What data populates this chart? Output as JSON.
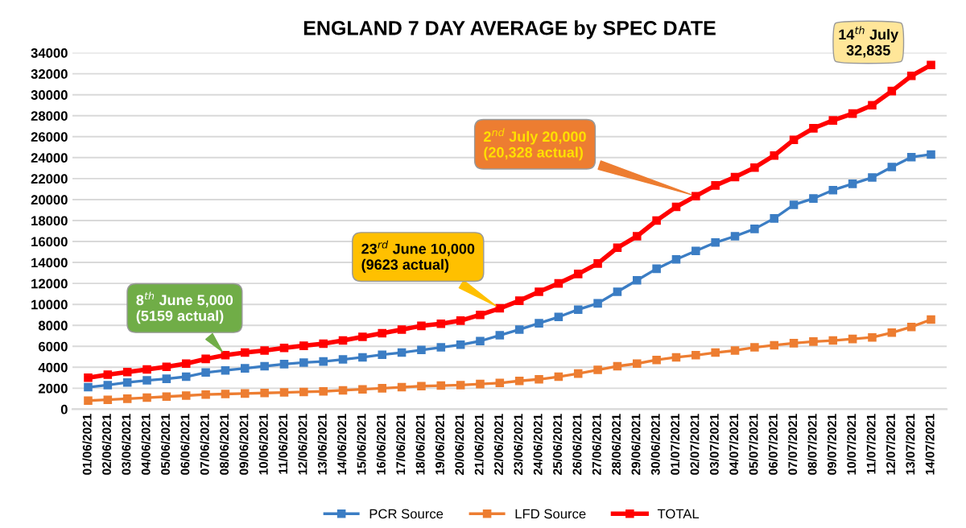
{
  "chart_data": {
    "type": "line",
    "title": "ENGLAND 7 DAY AVERAGE by SPEC DATE",
    "categories": [
      "01/06/2021",
      "02/06/2021",
      "03/06/2021",
      "04/06/2021",
      "05/06/2021",
      "06/06/2021",
      "07/06/2021",
      "08/06/2021",
      "09/06/2021",
      "10/06/2021",
      "11/06/2021",
      "12/06/2021",
      "13/06/2021",
      "14/06/2021",
      "15/06/2021",
      "16/06/2021",
      "17/06/2021",
      "18/06/2021",
      "19/06/2021",
      "20/06/2021",
      "21/06/2021",
      "22/06/2021",
      "23/06/2021",
      "24/06/2021",
      "25/06/2021",
      "26/06/2021",
      "27/06/2021",
      "28/06/2021",
      "29/06/2021",
      "30/06/2021",
      "01/07/2021",
      "02/07/2021",
      "03/07/2021",
      "04/07/2021",
      "05/07/2021",
      "06/07/2021",
      "07/07/2021",
      "08/07/2021",
      "09/07/2021",
      "10/07/2021",
      "11/07/2021",
      "12/07/2021",
      "13/07/2021",
      "14/07/2021"
    ],
    "series": [
      {
        "name": "PCR Source",
        "color": "#3b7dc4",
        "values": [
          2100,
          2300,
          2550,
          2750,
          2900,
          3100,
          3500,
          3700,
          3900,
          4100,
          4300,
          4450,
          4550,
          4750,
          4950,
          5200,
          5400,
          5650,
          5900,
          6150,
          6500,
          7050,
          7600,
          8200,
          8800,
          9500,
          10100,
          11200,
          12300,
          13400,
          14300,
          15100,
          15900,
          16500,
          17200,
          18200,
          19500,
          20100,
          20900,
          21500,
          22100,
          23100,
          24050,
          24300
        ]
      },
      {
        "name": "LFD Source",
        "color": "#ed7d31",
        "values": [
          820,
          900,
          1000,
          1100,
          1200,
          1300,
          1400,
          1450,
          1500,
          1550,
          1600,
          1650,
          1700,
          1800,
          1900,
          2000,
          2100,
          2200,
          2250,
          2300,
          2400,
          2500,
          2700,
          2850,
          3100,
          3400,
          3750,
          4100,
          4350,
          4700,
          4950,
          5150,
          5400,
          5600,
          5900,
          6100,
          6300,
          6450,
          6550,
          6700,
          6850,
          7300,
          7850,
          8550
        ]
      },
      {
        "name": "TOTAL",
        "color": "#ff0000",
        "values": [
          3000,
          3300,
          3550,
          3800,
          4050,
          4350,
          4800,
          5159,
          5400,
          5600,
          5850,
          6050,
          6250,
          6550,
          6900,
          7250,
          7600,
          7950,
          8150,
          8450,
          9000,
          9623,
          10350,
          11200,
          12000,
          12900,
          13900,
          15400,
          16500,
          18000,
          19300,
          20328,
          21350,
          22150,
          23050,
          24200,
          25700,
          26800,
          27550,
          28200,
          29000,
          30350,
          31800,
          32835
        ]
      }
    ],
    "ylim": [
      0,
      34000
    ],
    "yticks": [
      0,
      2000,
      4000,
      6000,
      8000,
      10000,
      12000,
      14000,
      16000,
      18000,
      20000,
      22000,
      24000,
      26000,
      28000,
      30000,
      32000,
      34000
    ],
    "grid": "y",
    "legend": "bottom",
    "marker": "square",
    "line_style": "solid",
    "annotations": [
      {
        "text": "8$^{th}$ June 5,000\n(5159 actual)",
        "x": "08/06/2021",
        "y": 5159
      },
      {
        "text": "23$^{rd}$ June 10,000\n(9623 actual)",
        "x": "22/06/2021",
        "y": 9623
      },
      {
        "text": "2$^{nd}$ July 20,000\n(20,328 actual)",
        "x": "02/07/2021",
        "y": 20328
      },
      {
        "text": "14$^{th}$ July\n32,835",
        "x": "14/07/2021",
        "y": 32835
      }
    ]
  }
}
